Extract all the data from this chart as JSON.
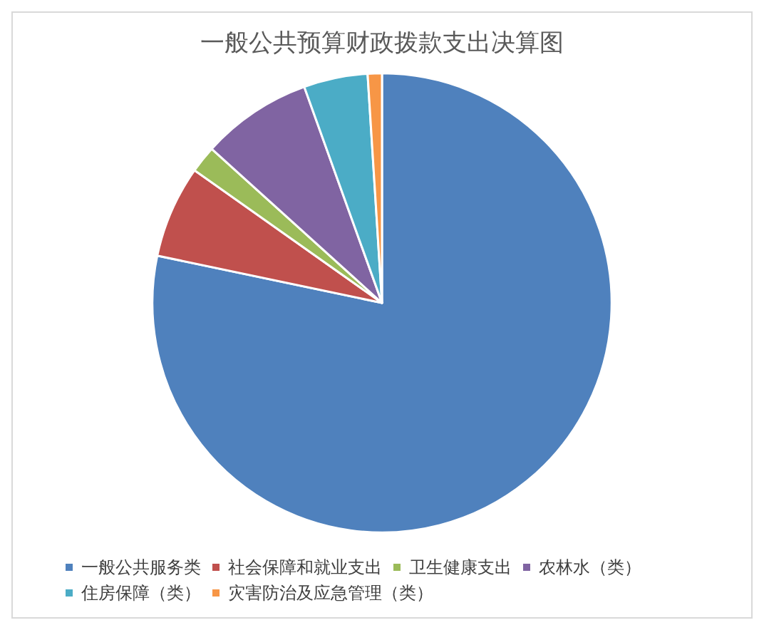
{
  "chart_data": {
    "type": "pie",
    "title": "一般公共预算财政拨款支出决算图",
    "categories": [
      "一般公共服务类",
      "社会保障和就业支出",
      "卫生健康支出",
      "农林水（类）",
      "住房保障（类）",
      "灾害防治及应急管理（类）"
    ],
    "values": [
      78.3,
      6.5,
      1.9,
      7.8,
      4.5,
      1.0
    ],
    "colors": [
      "#4f81bd",
      "#c0504d",
      "#9bbb59",
      "#8064a2",
      "#4bacc6",
      "#f79646"
    ],
    "legend": "bottom"
  }
}
